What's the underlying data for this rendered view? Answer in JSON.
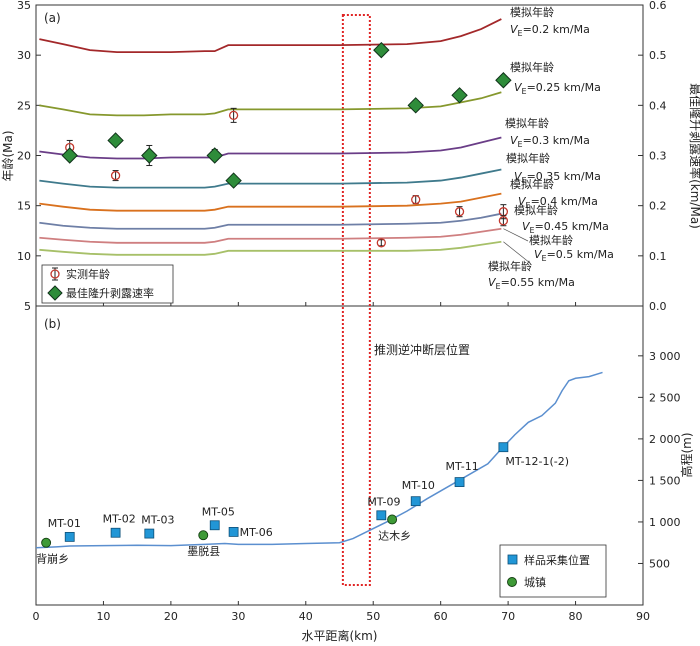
{
  "chart_data": [
    {
      "panel_label": "(a)",
      "type": "line",
      "xlabel": "水平距离(km)",
      "ylabel": "年龄(Ma)",
      "y2label": "最佳隆升剥露速率(km/Ma)",
      "xlim": [
        0,
        90
      ],
      "ylim": [
        5,
        35
      ],
      "y2lim": [
        0.0,
        0.6
      ],
      "x_ticks": [
        "0",
        "10",
        "20",
        "30",
        "40",
        "50",
        "60",
        "70",
        "80",
        "90"
      ],
      "y_ticks": [
        "5",
        "10",
        "15",
        "20",
        "25",
        "30",
        "35"
      ],
      "y2_ticks": [
        "0.0",
        "0.1",
        "0.2",
        "0.3",
        "0.4",
        "0.5",
        "0.6"
      ],
      "grid": false,
      "legend_position": "bottom-left",
      "legend": [
        "实测年龄",
        "最佳隆升剥露速率"
      ],
      "model_curves": [
        {
          "title": "模拟年龄",
          "rate": "=0.2 km/Ma",
          "color": "#a3282a",
          "x": [
            0.5,
            4,
            8,
            12,
            16,
            20,
            25,
            26.5,
            28.5,
            35,
            45,
            55,
            60,
            63,
            66,
            69
          ],
          "y": [
            31.6,
            31.1,
            30.5,
            30.3,
            30.3,
            30.3,
            30.4,
            30.4,
            31.0,
            31.0,
            31.0,
            31.1,
            31.4,
            31.9,
            32.6,
            33.6
          ]
        },
        {
          "title": "模拟年龄",
          "rate": "=0.25 km/Ma",
          "color": "#86982d",
          "x": [
            0.5,
            4,
            8,
            12,
            16,
            20,
            25,
            26.5,
            28.5,
            35,
            45,
            55,
            60,
            63,
            66,
            69
          ],
          "y": [
            25.0,
            24.6,
            24.1,
            24.0,
            24.0,
            24.1,
            24.1,
            24.2,
            24.6,
            24.6,
            24.6,
            24.7,
            24.9,
            25.3,
            25.7,
            26.3
          ]
        },
        {
          "title": "模拟年龄",
          "rate": "=0.3 km/Ma",
          "color": "#6a3d87",
          "x": [
            0.5,
            4,
            8,
            12,
            16,
            20,
            25,
            26.5,
            28.5,
            35,
            45,
            55,
            60,
            63,
            66,
            69
          ],
          "y": [
            20.4,
            20.1,
            19.8,
            19.7,
            19.7,
            19.8,
            19.8,
            19.8,
            20.2,
            20.2,
            20.2,
            20.3,
            20.5,
            20.8,
            21.3,
            21.8
          ]
        },
        {
          "title": "模拟年龄",
          "rate": "=0.35 km/Ma",
          "color": "#3f7a8c",
          "x": [
            0.5,
            4,
            8,
            12,
            16,
            20,
            25,
            26.5,
            28.5,
            35,
            45,
            55,
            60,
            63,
            66,
            69
          ],
          "y": [
            17.5,
            17.2,
            16.9,
            16.8,
            16.8,
            16.8,
            16.8,
            16.9,
            17.2,
            17.2,
            17.2,
            17.3,
            17.5,
            17.8,
            18.2,
            18.6
          ]
        },
        {
          "title": "模拟年龄",
          "rate": "=0.4 km/Ma",
          "color": "#d9711e",
          "x": [
            0.5,
            4,
            8,
            12,
            16,
            20,
            25,
            26.5,
            28.5,
            35,
            45,
            55,
            60,
            63,
            66,
            69
          ],
          "y": [
            15.2,
            14.9,
            14.6,
            14.5,
            14.5,
            14.5,
            14.5,
            14.6,
            14.9,
            14.9,
            14.9,
            15.0,
            15.2,
            15.4,
            15.8,
            16.2
          ]
        },
        {
          "title": "模拟年龄",
          "rate": "=0.45 km/Ma",
          "color": "#6e7fa6",
          "x": [
            0.5,
            4,
            8,
            12,
            16,
            20,
            25,
            26.5,
            28.5,
            35,
            45,
            55,
            60,
            63,
            66,
            69
          ],
          "y": [
            13.3,
            13.0,
            12.8,
            12.7,
            12.7,
            12.7,
            12.7,
            12.8,
            13.1,
            13.1,
            13.1,
            13.2,
            13.3,
            13.5,
            13.8,
            14.2
          ]
        },
        {
          "title": "模拟年龄",
          "rate": "=0.5 km/Ma",
          "color": "#cf7f80",
          "x": [
            0.5,
            4,
            8,
            12,
            16,
            20,
            25,
            26.5,
            28.5,
            35,
            45,
            55,
            60,
            63,
            66,
            69
          ],
          "y": [
            11.8,
            11.6,
            11.4,
            11.3,
            11.3,
            11.3,
            11.3,
            11.4,
            11.7,
            11.7,
            11.7,
            11.8,
            11.9,
            12.1,
            12.4,
            12.7
          ]
        },
        {
          "title": "模拟年龄",
          "rate": "=0.55 km/Ma",
          "color": "#a7c069",
          "x": [
            0.5,
            4,
            8,
            12,
            16,
            20,
            25,
            26.5,
            28.5,
            35,
            45,
            55,
            60,
            63,
            66,
            69
          ],
          "y": [
            10.6,
            10.4,
            10.2,
            10.1,
            10.1,
            10.1,
            10.1,
            10.2,
            10.5,
            10.5,
            10.5,
            10.5,
            10.6,
            10.8,
            11.1,
            11.4
          ]
        }
      ],
      "measured_ages": [
        {
          "x": 5.0,
          "y": 20.8,
          "err": 0.7
        },
        {
          "x": 11.8,
          "y": 18.0,
          "err": 0.5
        },
        {
          "x": 16.8,
          "y": 20.0,
          "err": 1.0
        },
        {
          "x": 26.5,
          "y": 20.1,
          "err": 0.5
        },
        {
          "x": 29.3,
          "y": 24.0,
          "err": 0.7
        },
        {
          "x": 51.2,
          "y": 11.3,
          "err": 0.3
        },
        {
          "x": 56.3,
          "y": 15.6,
          "err": 0.4
        },
        {
          "x": 62.8,
          "y": 14.4,
          "err": 0.5
        },
        {
          "x": 69.3,
          "y": 14.4,
          "err": 0.7
        },
        {
          "x": 69.3,
          "y": 13.5,
          "err": 0.5
        }
      ],
      "best_rates": [
        {
          "x": 5.0,
          "rate": 0.3
        },
        {
          "x": 11.8,
          "rate": 0.33
        },
        {
          "x": 16.8,
          "rate": 0.3
        },
        {
          "x": 26.5,
          "rate": 0.3
        },
        {
          "x": 29.3,
          "rate": 0.25
        },
        {
          "x": 51.2,
          "rate": 0.51
        },
        {
          "x": 56.3,
          "rate": 0.4
        },
        {
          "x": 62.8,
          "rate": 0.42
        },
        {
          "x": 69.3,
          "rate": 0.45
        }
      ]
    },
    {
      "panel_label": "(b)",
      "type": "line",
      "xlabel": "水平距离(km)",
      "ylabel": "高程(m)",
      "xlim": [
        0,
        90
      ],
      "ylim": [
        0,
        3600
      ],
      "y_ticks": [
        "500",
        "1 000",
        "1 500",
        "2 000",
        "2 500",
        "3 000"
      ],
      "grid": false,
      "legend_position": "bottom-right",
      "legend": [
        "样品采集位置",
        "城镇"
      ],
      "fault_annotation": "推测逆冲断层位置",
      "fault_zone_x": [
        45.5,
        49.5
      ],
      "profile": {
        "x": [
          0,
          3,
          5,
          10,
          15,
          20,
          25,
          28,
          30,
          35,
          40,
          45,
          47,
          50,
          52,
          55,
          58,
          61,
          64,
          67,
          69,
          71,
          73,
          75,
          77,
          78,
          79,
          80,
          82,
          84
        ],
        "y": [
          690,
          700,
          710,
          715,
          720,
          715,
          730,
          740,
          730,
          730,
          740,
          750,
          800,
          920,
          1000,
          1130,
          1280,
          1420,
          1560,
          1700,
          1880,
          2050,
          2200,
          2280,
          2430,
          2580,
          2700,
          2730,
          2750,
          2800
        ]
      },
      "samples": [
        {
          "name": "MT-01",
          "x": 5.0,
          "elev": 820
        },
        {
          "name": "MT-02",
          "x": 11.8,
          "elev": 870
        },
        {
          "name": "MT-03",
          "x": 16.8,
          "elev": 860
        },
        {
          "name": "MT-05",
          "x": 26.5,
          "elev": 960
        },
        {
          "name": "MT-06",
          "x": 29.3,
          "elev": 880
        },
        {
          "name": "MT-09",
          "x": 51.2,
          "elev": 1080
        },
        {
          "name": "MT-10",
          "x": 56.3,
          "elev": 1250
        },
        {
          "name": "MT-11",
          "x": 62.8,
          "elev": 1480
        },
        {
          "name": "MT-12-1(-2)",
          "x": 69.3,
          "elev": 1900
        }
      ],
      "towns": [
        {
          "name": "背崩乡",
          "x": 1.5,
          "elev": 750
        },
        {
          "name": "墨脱县",
          "x": 24.8,
          "elev": 840
        },
        {
          "name": "达木乡",
          "x": 52.8,
          "elev": 1030
        }
      ]
    }
  ]
}
